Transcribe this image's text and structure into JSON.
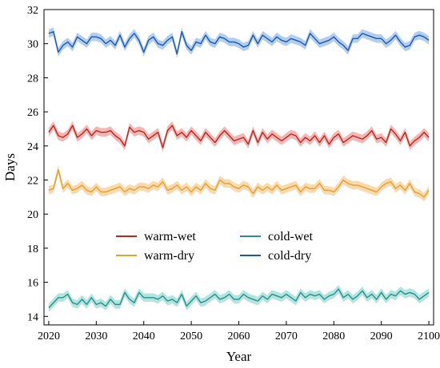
{
  "chart_data": {
    "type": "line",
    "title": "",
    "xlabel": "Year",
    "ylabel": "Days",
    "xlim": [
      2019,
      2101
    ],
    "ylim": [
      13.5,
      32
    ],
    "xticks": [
      2020,
      2030,
      2040,
      2050,
      2060,
      2070,
      2080,
      2090,
      2100
    ],
    "yticks": [
      14,
      16,
      18,
      20,
      22,
      24,
      26,
      28,
      30,
      32
    ],
    "grid": false,
    "band_halfwidth_days": 0.25,
    "legend": {
      "placement": "lower-middle",
      "columns": 2
    },
    "x_start": 2020,
    "series": [
      {
        "name": "warm-wet",
        "color": "#b22b1f",
        "band_color": "#f2a3a3",
        "values": [
          24.8,
          25.2,
          24.6,
          24.5,
          24.7,
          25.2,
          24.5,
          24.7,
          25.0,
          24.6,
          24.9,
          24.8,
          24.8,
          24.9,
          24.6,
          24.4,
          24.0,
          25.1,
          24.8,
          24.9,
          24.8,
          24.4,
          24.6,
          24.8,
          23.9,
          24.9,
          25.2,
          24.6,
          24.8,
          24.5,
          24.9,
          24.6,
          24.3,
          24.8,
          24.5,
          24.2,
          24.6,
          24.9,
          24.6,
          24.3,
          24.4,
          24.5,
          24.1,
          24.9,
          24.2,
          24.8,
          24.4,
          24.7,
          24.5,
          24.3,
          24.5,
          24.7,
          24.6,
          24.2,
          24.5,
          24.3,
          24.6,
          24.2,
          24.6,
          24.1,
          24.5,
          24.7,
          24.2,
          24.4,
          24.6,
          24.5,
          24.4,
          24.6,
          24.9,
          24.4,
          24.5,
          24.2,
          25.0,
          24.7,
          24.3,
          24.8,
          24.0,
          24.3,
          24.5,
          24.8,
          24.5
        ]
      },
      {
        "name": "cold-wet",
        "color": "#2a8f8c",
        "band_color": "#9fddd8",
        "values": [
          14.5,
          14.8,
          15.1,
          15.1,
          15.3,
          14.8,
          14.7,
          15.0,
          14.7,
          15.1,
          14.7,
          14.8,
          14.6,
          15.0,
          14.7,
          14.7,
          15.4,
          15.0,
          14.8,
          15.4,
          15.1,
          15.1,
          15.1,
          15.0,
          15.2,
          14.9,
          15.0,
          14.8,
          15.3,
          14.6,
          14.9,
          15.2,
          14.8,
          14.9,
          15.1,
          15.3,
          15.0,
          15.1,
          15.3,
          15.0,
          15.0,
          15.3,
          15.1,
          15.0,
          14.9,
          15.2,
          15.0,
          15.3,
          15.2,
          15.1,
          15.3,
          15.1,
          14.9,
          15.4,
          15.1,
          15.3,
          15.2,
          15.3,
          15.0,
          15.2,
          15.3,
          15.6,
          15.1,
          15.3,
          15.0,
          15.2,
          15.5,
          15.1,
          15.3,
          15.0,
          15.4,
          15.0,
          15.3,
          15.2,
          15.5,
          15.3,
          15.4,
          15.3,
          15.0,
          15.2,
          15.4
        ]
      },
      {
        "name": "warm-dry",
        "color": "#e3a12f",
        "band_color": "#f6d19a",
        "values": [
          21.4,
          21.5,
          22.6,
          21.5,
          21.8,
          21.4,
          21.5,
          21.7,
          21.4,
          21.3,
          21.6,
          21.3,
          21.3,
          21.4,
          21.5,
          21.6,
          21.3,
          21.5,
          21.4,
          21.6,
          21.6,
          21.5,
          21.7,
          21.6,
          21.9,
          21.4,
          21.5,
          21.7,
          21.4,
          21.6,
          21.3,
          21.6,
          21.4,
          21.8,
          21.5,
          21.4,
          22.0,
          21.8,
          21.8,
          21.6,
          21.5,
          21.7,
          21.6,
          21.2,
          21.6,
          21.4,
          21.6,
          21.4,
          21.7,
          21.4,
          21.5,
          21.6,
          21.7,
          21.3,
          21.6,
          21.5,
          21.5,
          21.8,
          21.4,
          21.4,
          21.3,
          21.6,
          22.0,
          21.8,
          21.7,
          21.7,
          21.6,
          21.5,
          21.4,
          21.3,
          21.6,
          21.8,
          21.9,
          21.5,
          21.7,
          21.4,
          21.8,
          21.3,
          21.2,
          21.0,
          21.4
        ]
      },
      {
        "name": "cold-dry",
        "color": "#1f56b0",
        "band_color": "#9ec3e8",
        "values": [
          30.6,
          30.7,
          29.5,
          29.9,
          30.1,
          29.8,
          30.4,
          30.2,
          30.0,
          30.4,
          30.4,
          30.3,
          30.0,
          30.2,
          29.9,
          30.5,
          29.8,
          30.3,
          30.6,
          30.2,
          29.5,
          30.2,
          30.4,
          30.0,
          29.9,
          30.2,
          30.4,
          29.4,
          30.7,
          29.9,
          29.6,
          30.1,
          30.0,
          30.5,
          30.1,
          30.0,
          30.4,
          30.3,
          30.1,
          30.1,
          30.0,
          29.8,
          29.9,
          30.5,
          30.0,
          30.5,
          30.3,
          30.1,
          30.4,
          30.2,
          30.1,
          30.3,
          30.2,
          30.1,
          29.9,
          30.6,
          30.3,
          30.0,
          30.1,
          30.2,
          30.4,
          30.1,
          29.9,
          29.6,
          30.3,
          30.3,
          30.6,
          30.5,
          30.4,
          30.3,
          30.3,
          30.0,
          30.2,
          30.5,
          30.1,
          29.8,
          29.9,
          30.4,
          30.5,
          30.4,
          30.2
        ]
      }
    ]
  }
}
